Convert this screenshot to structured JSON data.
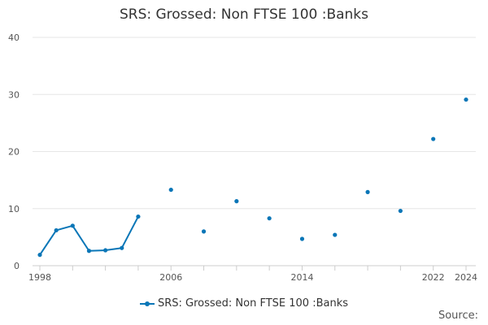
{
  "chart_data": {
    "type": "line",
    "title": "SRS: Grossed: Non FTSE 100 :Banks",
    "xlabel": "",
    "ylabel": "",
    "x_ticks": [
      1998,
      2006,
      2014,
      2022,
      2024
    ],
    "y_ticks": [
      0,
      10,
      20,
      30,
      40
    ],
    "xlim": [
      1998,
      2024
    ],
    "ylim": [
      0,
      40
    ],
    "grid": "horizontal",
    "legend_position": "bottom",
    "color": "#0a76b7",
    "series": [
      {
        "name": "SRS: Grossed: Non FTSE 100 :Banks",
        "points": [
          {
            "x": 1998,
            "y": 1.9
          },
          {
            "x": 1999,
            "y": 6.2
          },
          {
            "x": 2000,
            "y": 7.0
          },
          {
            "x": 2001,
            "y": 2.6
          },
          {
            "x": 2002,
            "y": 2.7
          },
          {
            "x": 2003,
            "y": 3.1
          },
          {
            "x": 2004,
            "y": 8.6
          },
          {
            "x": 2006,
            "y": 13.3
          },
          {
            "x": 2008,
            "y": 6.0
          },
          {
            "x": 2010,
            "y": 11.3
          },
          {
            "x": 2012,
            "y": 8.3
          },
          {
            "x": 2014,
            "y": 4.7
          },
          {
            "x": 2016,
            "y": 5.4
          },
          {
            "x": 2018,
            "y": 12.9
          },
          {
            "x": 2020,
            "y": 9.6
          },
          {
            "x": 2022,
            "y": 22.2
          },
          {
            "x": 2024,
            "y": 29.1
          }
        ]
      }
    ]
  },
  "source_label": "Source:"
}
